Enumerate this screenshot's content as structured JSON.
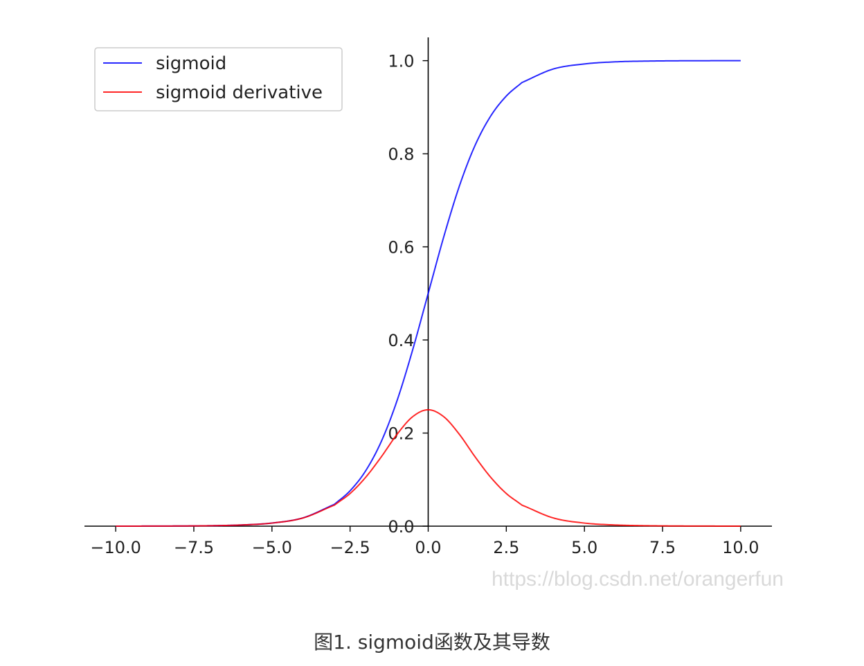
{
  "chart_data": {
    "type": "line",
    "xlim": [
      -11,
      11
    ],
    "ylim": [
      0,
      1.05
    ],
    "x_ticks": [
      -10.0,
      -7.5,
      -5.0,
      -2.5,
      0.0,
      2.5,
      5.0,
      7.5,
      10.0
    ],
    "x_tick_labels": [
      "−10.0",
      "−7.5",
      "−5.0",
      "−2.5",
      "0.0",
      "2.5",
      "5.0",
      "7.5",
      "10.0"
    ],
    "y_ticks": [
      0.0,
      0.2,
      0.4,
      0.6,
      0.8,
      1.0
    ],
    "y_tick_labels": [
      "0.0",
      "0.2",
      "0.4",
      "0.6",
      "0.8",
      "1.0"
    ],
    "x": [
      -10,
      -9,
      -8,
      -7,
      -6,
      -5,
      -4,
      -3,
      -2.5,
      -2,
      -1.5,
      -1,
      -0.5,
      0,
      0.5,
      1,
      1.5,
      2,
      2.5,
      3,
      4,
      5,
      6,
      7,
      8,
      9,
      10
    ],
    "series": [
      {
        "name": "sigmoid",
        "color": "#0000ff",
        "values": [
          5e-05,
          0.00012,
          0.00034,
          0.00091,
          0.0025,
          0.0067,
          0.018,
          0.047,
          0.076,
          0.119,
          0.182,
          0.269,
          0.378,
          0.5,
          0.622,
          0.731,
          0.818,
          0.881,
          0.924,
          0.953,
          0.982,
          0.993,
          0.9975,
          0.9991,
          0.9997,
          0.9999,
          1.0
        ]
      },
      {
        "name": "sigmoid derivative",
        "color": "#ff0000",
        "values": [
          5e-05,
          0.00012,
          0.00034,
          0.00091,
          0.0025,
          0.0066,
          0.0177,
          0.0452,
          0.0701,
          0.105,
          0.149,
          0.197,
          0.235,
          0.25,
          0.235,
          0.197,
          0.149,
          0.105,
          0.0701,
          0.0452,
          0.0177,
          0.0066,
          0.0025,
          0.00091,
          0.00034,
          0.00012,
          5e-05
        ]
      }
    ],
    "legend_position": "top-left",
    "grid": false,
    "spines": "centered-y-axis"
  },
  "watermark": "https://blog.csdn.net/orangerfun",
  "caption": "图1. sigmoid函数及其导数",
  "colors": {
    "axis": "#000000",
    "legend_border": "#cccccc"
  }
}
